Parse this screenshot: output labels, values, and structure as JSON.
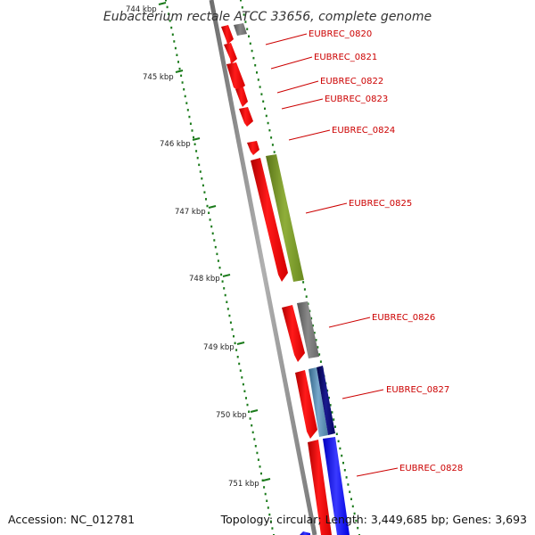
{
  "title": "Eubacterium rectale ATCC 33656, complete genome",
  "footer": {
    "accession": "Accession: NC_012781",
    "summary": "Topology: circular; Length: 3,449,685 bp; Genes: 3,693"
  },
  "ruler": {
    "labels": [
      "744 kbp",
      "745 kbp",
      "746 kbp",
      "747 kbp",
      "748 kbp",
      "749 kbp",
      "750 kbp",
      "751 kbp"
    ]
  },
  "genes": [
    {
      "name": "EUBREC_0820",
      "color": "#ff0000"
    },
    {
      "name": "EUBREC_0821",
      "color": "#ff0000"
    },
    {
      "name": "EUBREC_0822",
      "color": "#ff0000"
    },
    {
      "name": "EUBREC_0823",
      "color": "#ff0000"
    },
    {
      "name": "EUBREC_0824",
      "color": "#ff0000"
    },
    {
      "name": "EUBREC_0825",
      "color": "#ff0000"
    },
    {
      "name": "EUBREC_0826",
      "color": "#ff0000"
    },
    {
      "name": "EUBREC_0827",
      "color": "#ff0000"
    },
    {
      "name": "EUBREC_0828",
      "color": "#ff0000"
    }
  ],
  "colors": {
    "backbone": "#8c8c8c",
    "ticks": "#1a7a1a",
    "label": "#cc0000",
    "olive": "#7a9a2a",
    "gray": "#7a7a7a",
    "steel": "#5588aa",
    "navy": "#0a0a70",
    "blue": "#1a1aff"
  }
}
